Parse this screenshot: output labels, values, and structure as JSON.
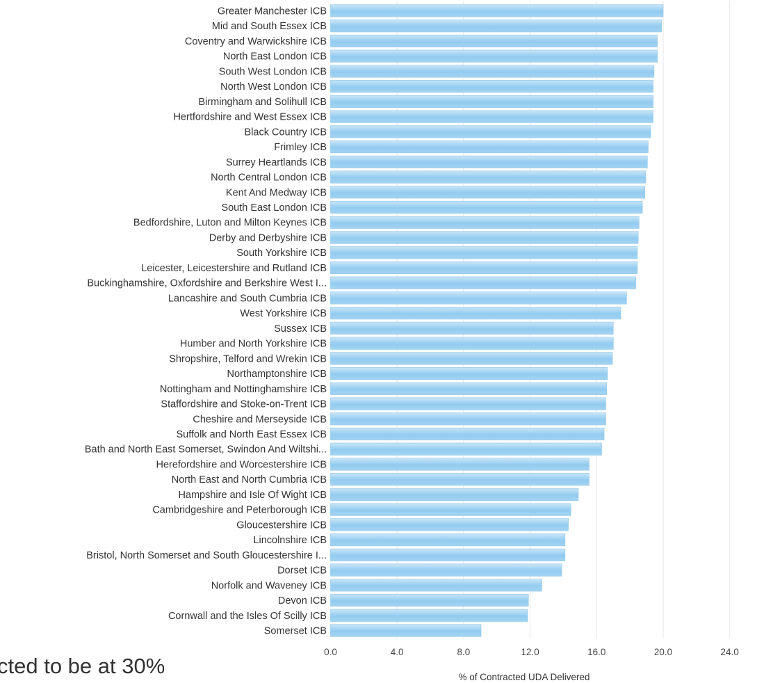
{
  "footnote": "cted to be at 30%",
  "colors": {
    "bar_top": "#c9e6f8",
    "bar_mid": "#92cbf0",
    "bar_bottom": "#a4d4f2",
    "grid": "#e6e6e6",
    "text": "#333333"
  },
  "chart_data": {
    "type": "bar",
    "orientation": "horizontal",
    "xlabel": "% of Contracted UDA Delivered",
    "ylabel": "",
    "xlim": [
      0,
      24
    ],
    "xticks": [
      "0.0",
      "4.0",
      "8.0",
      "12.0",
      "16.0",
      "20.0",
      "24.0"
    ],
    "grid": "vertical",
    "categories": [
      "Greater Manchester ICB",
      "Mid and South Essex ICB",
      "Coventry and Warwickshire ICB",
      "North East London ICB",
      "South West London ICB",
      "North West London ICB",
      "Birmingham and Solihull ICB",
      "Hertfordshire and West Essex ICB",
      "Black Country ICB",
      "Frimley ICB",
      "Surrey Heartlands ICB",
      "North Central London ICB",
      "Kent And Medway ICB",
      "South East London ICB",
      "Bedfordshire, Luton and Milton Keynes ICB",
      "Derby and Derbyshire ICB",
      "South Yorkshire ICB",
      "Leicester, Leicestershire and Rutland ICB",
      "Buckinghamshire, Oxfordshire and Berkshire West I...",
      "Lancashire and South Cumbria ICB",
      "West Yorkshire ICB",
      "Sussex ICB",
      "Humber and North Yorkshire ICB",
      "Shropshire, Telford and Wrekin ICB",
      "Northamptonshire ICB",
      "Nottingham and Nottinghamshire ICB",
      "Staffordshire and Stoke-on-Trent ICB",
      "Cheshire and Merseyside ICB",
      "Suffolk and North East Essex ICB",
      "Bath and North East Somerset, Swindon And Wiltshi...",
      "Herefordshire and Worcestershire ICB",
      "North East and North Cumbria ICB",
      "Hampshire and Isle Of Wight ICB",
      "Cambridgeshire and Peterborough ICB",
      "Gloucestershire ICB",
      "Lincolnshire ICB",
      "Bristol, North Somerset and South Gloucestershire I...",
      "Dorset ICB",
      "Norfolk and Waveney ICB",
      "Devon ICB",
      "Cornwall and the Isles Of Scilly ICB",
      "Somerset ICB"
    ],
    "values": [
      20.0,
      19.9,
      19.65,
      19.65,
      19.45,
      19.4,
      19.4,
      19.4,
      19.25,
      19.1,
      19.05,
      18.95,
      18.9,
      18.75,
      18.55,
      18.5,
      18.45,
      18.45,
      18.35,
      17.8,
      17.45,
      17.0,
      17.0,
      16.95,
      16.65,
      16.6,
      16.55,
      16.55,
      16.45,
      16.3,
      15.55,
      15.55,
      14.9,
      14.45,
      14.3,
      14.1,
      14.1,
      13.9,
      12.7,
      11.9,
      11.85,
      9.05
    ]
  }
}
